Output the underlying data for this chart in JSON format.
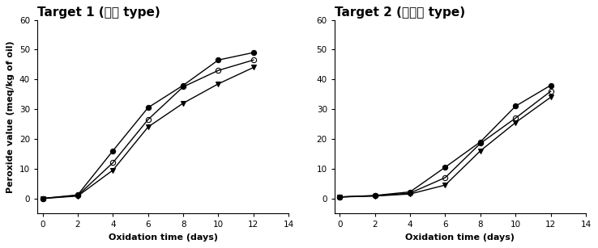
{
  "plot1": {
    "title": "Target 1 (건면 type)",
    "series": [
      {
        "x": [
          0,
          2,
          4,
          6,
          8,
          10,
          12
        ],
        "y": [
          0,
          1.2,
          16,
          30.5,
          38,
          46.5,
          49
        ],
        "marker": "o",
        "fillstyle": "full",
        "color": "black",
        "markersize": 4.5
      },
      {
        "x": [
          0,
          2,
          4,
          6,
          8,
          10,
          12
        ],
        "y": [
          0,
          1.0,
          12,
          26.5,
          37.5,
          43,
          46.5
        ],
        "marker": "o",
        "fillstyle": "none",
        "color": "black",
        "markersize": 4.5
      },
      {
        "x": [
          0,
          2,
          4,
          6,
          8,
          10,
          12
        ],
        "y": [
          0,
          0.8,
          9.5,
          24,
          32,
          38.5,
          44
        ],
        "marker": "v",
        "fillstyle": "full",
        "color": "black",
        "markersize": 4.5
      }
    ],
    "xlabel": "Oxidation time (days)",
    "ylabel": "Peroxide value (meq/kg of oil)",
    "xlim": [
      -0.3,
      14
    ],
    "ylim": [
      -5,
      60
    ],
    "xticks": [
      0,
      2,
      4,
      6,
      8,
      10,
      12,
      14
    ],
    "yticks": [
      0,
      10,
      20,
      30,
      40,
      50,
      60
    ]
  },
  "plot2": {
    "title": "Target 2 (유탕면 type)",
    "series": [
      {
        "x": [
          0,
          2,
          4,
          6,
          8,
          10,
          12
        ],
        "y": [
          0.5,
          1.0,
          2.2,
          10.5,
          19,
          31,
          38
        ],
        "marker": "o",
        "fillstyle": "full",
        "color": "black",
        "markersize": 4.5
      },
      {
        "x": [
          0,
          2,
          4,
          6,
          8,
          10,
          12
        ],
        "y": [
          0.5,
          0.9,
          1.8,
          7.0,
          18.5,
          27,
          36
        ],
        "marker": "o",
        "fillstyle": "none",
        "color": "black",
        "markersize": 4.5
      },
      {
        "x": [
          0,
          2,
          4,
          6,
          8,
          10,
          12
        ],
        "y": [
          0.5,
          0.8,
          1.5,
          4.5,
          16,
          25.5,
          34
        ],
        "marker": "v",
        "fillstyle": "full",
        "color": "black",
        "markersize": 4.5
      }
    ],
    "xlabel": "Oxidation time (days)",
    "ylabel": "",
    "xlim": [
      -0.3,
      14
    ],
    "ylim": [
      -5,
      60
    ],
    "xticks": [
      0,
      2,
      4,
      6,
      8,
      10,
      12,
      14
    ],
    "yticks": [
      0,
      10,
      20,
      30,
      40,
      50,
      60
    ]
  },
  "title_fontsize": 11,
  "label_fontsize": 8,
  "tick_fontsize": 7.5,
  "linewidth": 1.0,
  "background_color": "#ffffff"
}
